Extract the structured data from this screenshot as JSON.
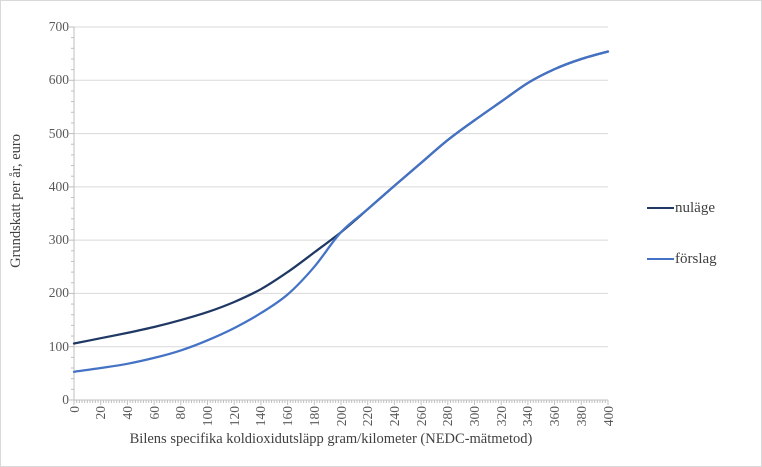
{
  "chart_data": {
    "type": "line",
    "title": "",
    "xlabel": "Bilens specifika koldioxidutsläpp gram/kilometer (NEDC-mätmetod)",
    "ylabel": "Grundskatt per år, euro",
    "x": [
      0,
      20,
      40,
      60,
      80,
      100,
      120,
      140,
      160,
      180,
      200,
      220,
      240,
      260,
      280,
      300,
      320,
      340,
      360,
      380,
      400
    ],
    "series": [
      {
        "name": "nuläge",
        "color": "#1F3864",
        "values": [
          106,
          116,
          126,
          137,
          150,
          165,
          184,
          208,
          240,
          277,
          315,
          358,
          402,
          445,
          488,
          525,
          560,
          595,
          621,
          640,
          654
        ]
      },
      {
        "name": "förslag",
        "color": "#4472C4",
        "values": [
          53,
          60,
          68,
          79,
          93,
          112,
          135,
          163,
          198,
          250,
          315,
          358,
          402,
          445,
          488,
          525,
          560,
          595,
          621,
          640,
          654
        ]
      }
    ],
    "xlim": [
      0,
      400
    ],
    "ylim": [
      0,
      700
    ],
    "x_tick_step": 20,
    "y_tick_step": 100,
    "x_minor_tick_step": 2,
    "y_minor_tick_step": 20,
    "grid": "horizontal",
    "legend_position": "right",
    "colors": {
      "grid": "#d9d9d9",
      "axis": "#bfbfbf",
      "tick_label": "#595959",
      "axis_title": "#404040",
      "background": "#ffffff",
      "border": "#d9d9d9"
    }
  }
}
